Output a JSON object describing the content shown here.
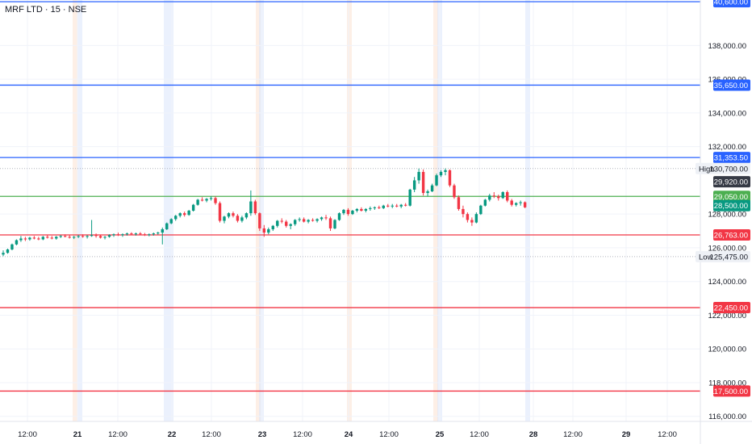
{
  "header": {
    "title": "MRF LTD · 15 · NSE"
  },
  "price_scale": {
    "ticks": [
      {
        "label": "138,000.00",
        "value": 138000
      },
      {
        "label": "136,000.00",
        "value": 136000
      },
      {
        "label": "134,000.00",
        "value": 134000
      },
      {
        "label": "132,000.00",
        "value": 132000
      },
      {
        "label": "128,000.00",
        "value": 128000
      },
      {
        "label": "126,000.00",
        "value": 126000
      },
      {
        "label": "124,000.00",
        "value": 124000
      },
      {
        "label": "122,000.00",
        "value": 122000
      },
      {
        "label": "120,000.00",
        "value": 120000
      },
      {
        "label": "118,000.00",
        "value": 118000
      },
      {
        "label": "116,000.00",
        "value": 116000
      }
    ]
  },
  "time_scale": {
    "labels": [
      {
        "label": "12:00",
        "bold": false
      },
      {
        "label": "21",
        "bold": true
      },
      {
        "label": "12:00",
        "bold": false
      },
      {
        "label": "22",
        "bold": true
      },
      {
        "label": "12:00",
        "bold": false
      },
      {
        "label": "23",
        "bold": true
      },
      {
        "label": "12:00",
        "bold": false
      },
      {
        "label": "24",
        "bold": true
      },
      {
        "label": "12:00",
        "bold": false
      },
      {
        "label": "25",
        "bold": true
      },
      {
        "label": "12:00",
        "bold": false
      },
      {
        "label": "28",
        "bold": true
      },
      {
        "label": "12:00",
        "bold": false
      },
      {
        "label": "29",
        "bold": true
      },
      {
        "label": "12:00",
        "bold": false
      }
    ]
  },
  "levels": [
    {
      "value": 140600,
      "label": "140,600.00",
      "color": "#2962ff"
    },
    {
      "value": 135650,
      "label": "135,650.00",
      "color": "#2962ff"
    },
    {
      "value": 131353.5,
      "label": "131,353.50",
      "color": "#2962ff"
    },
    {
      "value": 129050,
      "label": "129,050.00",
      "color": "#4caf50"
    },
    {
      "value": 126763,
      "label": "126,763.00",
      "color": "#f23645"
    },
    {
      "value": 122450,
      "label": "122,450.00",
      "color": "#f23645"
    },
    {
      "value": 117500,
      "label": "117,500.00",
      "color": "#f23645"
    }
  ],
  "markers": {
    "high": {
      "name": "High",
      "value": 130700,
      "label": "130,700.00"
    },
    "low": {
      "name": "Low",
      "value": 125475,
      "label": "125,475.00"
    },
    "prev_close": {
      "value": 129920,
      "label": "129,920.00",
      "color": "#363a45"
    },
    "last_price": {
      "value": 128500,
      "label": "128,500.00",
      "color": "#089981"
    }
  },
  "colors": {
    "up": "#089981",
    "down": "#f23645",
    "session_blue": "#dbe6fb",
    "session_orange": "#fbe2d2"
  },
  "chart_data": {
    "type": "candlestick",
    "title": "MRF LTD · 15 · NSE",
    "x": [
      "20 12:00",
      "21",
      "21 12:00",
      "22",
      "22 12:00",
      "23",
      "23 12:00",
      "24",
      "24 12:00",
      "25",
      "25 12:00",
      "28",
      "28 12:00",
      "29",
      "29 12:00"
    ],
    "ylim": [
      115700,
      140700
    ],
    "series": [
      {
        "values": [
          [
            125600,
            125850,
            125500,
            125700
          ],
          [
            125700,
            125950,
            125650,
            125900
          ],
          [
            125900,
            126250,
            125850,
            126200
          ],
          [
            126200,
            126500,
            126150,
            126450
          ],
          [
            126450,
            126700,
            126350,
            126550
          ],
          [
            126550,
            126650,
            126400,
            126500
          ],
          [
            126500,
            126650,
            126420,
            126600
          ],
          [
            126600,
            126700,
            126500,
            126550
          ],
          [
            126550,
            126650,
            126450,
            126500
          ],
          [
            126500,
            126700,
            126450,
            126650
          ],
          [
            126650,
            126750,
            126550,
            126600
          ],
          [
            126600,
            126700,
            126500,
            126550
          ],
          [
            126550,
            126700,
            126480,
            126650
          ],
          [
            126650,
            126750,
            126580,
            126700
          ],
          [
            126700,
            126800,
            126620,
            126650
          ],
          [
            126650,
            126750,
            126550,
            126600
          ],
          [
            126600,
            126700,
            126520,
            126650
          ],
          [
            126650,
            126750,
            126580,
            126700
          ],
          [
            126700,
            126800,
            126600,
            126650
          ],
          [
            126650,
            126750,
            126550,
            126700
          ],
          [
            126700,
            127650,
            126650,
            126750
          ],
          [
            126750,
            126850,
            126600,
            126700
          ],
          [
            126700,
            126780,
            126550,
            126600
          ],
          [
            126600,
            126700,
            126500,
            126650
          ],
          [
            126650,
            126800,
            126600,
            126750
          ],
          [
            126750,
            126850,
            126650,
            126800
          ],
          [
            126800,
            126900,
            126700,
            126750
          ],
          [
            126750,
            126850,
            126650,
            126800
          ],
          [
            126800,
            126900,
            126720,
            126850
          ],
          [
            126850,
            126920,
            126750,
            126800
          ],
          [
            126800,
            126900,
            126720,
            126850
          ],
          [
            126850,
            126930,
            126760,
            126800
          ],
          [
            126800,
            126880,
            126700,
            126750
          ],
          [
            126750,
            126850,
            126680,
            126800
          ],
          [
            126800,
            126900,
            126720,
            126850
          ],
          [
            126850,
            126950,
            126780,
            126900
          ],
          [
            126900,
            127200,
            126200,
            127100
          ],
          [
            127100,
            127500,
            127050,
            127450
          ],
          [
            127450,
            127750,
            127400,
            127700
          ],
          [
            127700,
            127950,
            127600,
            127900
          ],
          [
            127900,
            128100,
            127800,
            128050
          ],
          [
            128050,
            128150,
            127850,
            127950
          ],
          [
            127950,
            128250,
            127900,
            128200
          ],
          [
            128200,
            128600,
            128150,
            128550
          ],
          [
            128550,
            128900,
            128500,
            128850
          ],
          [
            128850,
            129000,
            128750,
            128800
          ],
          [
            128800,
            128950,
            128700,
            128900
          ],
          [
            128900,
            129050,
            128800,
            128950
          ],
          [
            128950,
            129050,
            128550,
            128650
          ],
          [
            128650,
            128750,
            127500,
            127600
          ],
          [
            127600,
            127900,
            127450,
            127850
          ],
          [
            127850,
            128100,
            127750,
            128050
          ],
          [
            128050,
            128150,
            127800,
            127900
          ],
          [
            127900,
            128000,
            127500,
            127600
          ],
          [
            127600,
            127900,
            127500,
            127800
          ],
          [
            127800,
            128100,
            127700,
            128050
          ],
          [
            128050,
            129400,
            127900,
            128750
          ],
          [
            128750,
            128850,
            127950,
            128050
          ],
          [
            128050,
            128100,
            127000,
            127150
          ],
          [
            127150,
            127350,
            126650,
            126900
          ],
          [
            126900,
            127200,
            126800,
            127100
          ],
          [
            127100,
            127350,
            127000,
            127300
          ],
          [
            127300,
            127650,
            127200,
            127600
          ],
          [
            127600,
            127750,
            127450,
            127550
          ],
          [
            127550,
            127650,
            127200,
            127300
          ],
          [
            127300,
            127450,
            127100,
            127400
          ],
          [
            127400,
            127700,
            127300,
            127650
          ],
          [
            127650,
            127800,
            127550,
            127700
          ],
          [
            127700,
            127800,
            127500,
            127550
          ],
          [
            127550,
            127700,
            127450,
            127650
          ],
          [
            127650,
            127750,
            127550,
            127600
          ],
          [
            127600,
            127750,
            127500,
            127700
          ],
          [
            127700,
            127850,
            127600,
            127800
          ],
          [
            127800,
            127950,
            127650,
            127750
          ],
          [
            127750,
            127850,
            127000,
            127150
          ],
          [
            127150,
            127700,
            127100,
            127650
          ],
          [
            127650,
            128100,
            127600,
            128050
          ],
          [
            128050,
            128300,
            127950,
            128250
          ],
          [
            128250,
            128350,
            127900,
            128000
          ],
          [
            128000,
            128250,
            127950,
            128200
          ],
          [
            128200,
            128350,
            128100,
            128300
          ],
          [
            128300,
            128400,
            128150,
            128200
          ],
          [
            128200,
            128350,
            128100,
            128300
          ],
          [
            128300,
            128450,
            128200,
            128350
          ],
          [
            128350,
            128450,
            128250,
            128400
          ],
          [
            128400,
            128500,
            128300,
            128350
          ],
          [
            128350,
            128550,
            128300,
            128500
          ],
          [
            128500,
            128600,
            128400,
            128450
          ],
          [
            128450,
            128600,
            128350,
            128500
          ],
          [
            128500,
            128600,
            128400,
            128450
          ],
          [
            128450,
            128600,
            128350,
            128550
          ],
          [
            128550,
            128650,
            128450,
            128500
          ],
          [
            128500,
            129500,
            128450,
            129450
          ],
          [
            129450,
            130200,
            129300,
            130000
          ],
          [
            130000,
            130700,
            129800,
            130500
          ],
          [
            130500,
            130650,
            129100,
            129250
          ],
          [
            129250,
            129450,
            129050,
            129350
          ],
          [
            129350,
            129800,
            129300,
            129700
          ],
          [
            129700,
            130400,
            129650,
            130300
          ],
          [
            130300,
            130600,
            130200,
            130500
          ],
          [
            130500,
            130700,
            130300,
            130600
          ],
          [
            130600,
            130650,
            129600,
            129700
          ],
          [
            129700,
            129800,
            128900,
            129000
          ],
          [
            129000,
            129100,
            128200,
            128300
          ],
          [
            128300,
            128500,
            127800,
            128000
          ],
          [
            128000,
            128100,
            127500,
            127650
          ],
          [
            127650,
            127800,
            127300,
            127500
          ],
          [
            127500,
            128100,
            127450,
            128000
          ],
          [
            128000,
            128550,
            127950,
            128500
          ],
          [
            128500,
            128900,
            128450,
            128850
          ],
          [
            128850,
            129200,
            128750,
            129100
          ],
          [
            129100,
            129300,
            128950,
            129050
          ],
          [
            129050,
            129150,
            128800,
            128950
          ],
          [
            128950,
            129350,
            128900,
            129300
          ],
          [
            129300,
            129400,
            128700,
            128800
          ],
          [
            128800,
            128900,
            128450,
            128550
          ],
          [
            128550,
            128700,
            128450,
            128650
          ],
          [
            128650,
            128800,
            128500,
            128700
          ],
          [
            128700,
            128750,
            128350,
            128400
          ]
        ]
      }
    ]
  }
}
